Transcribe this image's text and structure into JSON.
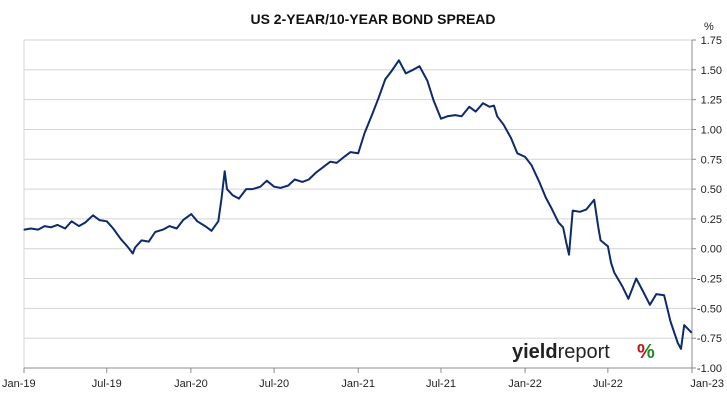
{
  "watermark": {
    "brand_bold": "yield",
    "brand_regular": "report",
    "brand_symbol": "%"
  },
  "colors": {
    "line": "#0d2a6b",
    "axis": "#8c8c8c",
    "grid": "#d4d4d4",
    "logo_red": "#c0161b",
    "logo_green": "#1f8a2b"
  },
  "chart_data": {
    "type": "line",
    "title": "US 2-YEAR/10-YEAR BOND SPREAD",
    "xlabel": "",
    "ylabel": "%",
    "y_axis_side": "right",
    "ylim": [
      -1.0,
      1.75
    ],
    "y_ticks": [
      -1.0,
      -0.75,
      -0.5,
      -0.25,
      0.0,
      0.25,
      0.5,
      0.75,
      1.0,
      1.25,
      1.5,
      1.75
    ],
    "y_tick_labels": [
      "-1.00",
      "-0.75",
      "-0.50",
      "-0.25",
      "0.00",
      "0.25",
      "0.50",
      "0.75",
      "1.00",
      "1.25",
      "1.50",
      "1.75"
    ],
    "xlim": [
      "2019-01-01",
      "2023-01-01"
    ],
    "x_ticks": [
      "2019-01-01",
      "2019-07-01",
      "2020-01-01",
      "2020-07-01",
      "2021-01-01",
      "2021-07-01",
      "2022-01-01",
      "2022-07-01",
      "2023-01-01"
    ],
    "x_tick_labels": [
      "Jan-19",
      "Jul-19",
      "Jan-20",
      "Jul-20",
      "Jan-21",
      "Jul-21",
      "Jan-22",
      "Jul-22",
      "Jan-23"
    ],
    "grid": "horizontal",
    "legend": "none",
    "series": [
      {
        "x": [
          "2019-01-02",
          "2019-01-16",
          "2019-02-01",
          "2019-02-15",
          "2019-03-01",
          "2019-03-15",
          "2019-04-01",
          "2019-04-15",
          "2019-05-01",
          "2019-05-15",
          "2019-06-01",
          "2019-06-15",
          "2019-07-01",
          "2019-07-15",
          "2019-08-01",
          "2019-08-15",
          "2019-08-27",
          "2019-09-01",
          "2019-09-15",
          "2019-10-01",
          "2019-10-15",
          "2019-11-01",
          "2019-11-15",
          "2019-12-01",
          "2019-12-15",
          "2020-01-02",
          "2020-01-15",
          "2020-02-01",
          "2020-02-15",
          "2020-03-01",
          "2020-03-08",
          "2020-03-15",
          "2020-03-20",
          "2020-04-01",
          "2020-04-15",
          "2020-05-01",
          "2020-05-15",
          "2020-06-01",
          "2020-06-15",
          "2020-07-01",
          "2020-07-15",
          "2020-08-01",
          "2020-08-15",
          "2020-09-01",
          "2020-09-15",
          "2020-10-01",
          "2020-10-15",
          "2020-11-01",
          "2020-11-15",
          "2020-12-01",
          "2020-12-15",
          "2021-01-01",
          "2021-01-15",
          "2021-02-01",
          "2021-02-15",
          "2021-03-01",
          "2021-03-15",
          "2021-03-31",
          "2021-04-15",
          "2021-05-01",
          "2021-05-15",
          "2021-06-01",
          "2021-06-15",
          "2021-07-01",
          "2021-07-15",
          "2021-08-01",
          "2021-08-15",
          "2021-09-01",
          "2021-09-15",
          "2021-10-01",
          "2021-10-15",
          "2021-10-25",
          "2021-11-01",
          "2021-11-15",
          "2021-12-01",
          "2021-12-15",
          "2022-01-01",
          "2022-01-15",
          "2022-02-01",
          "2022-02-15",
          "2022-03-01",
          "2022-03-15",
          "2022-03-25",
          "2022-04-01",
          "2022-04-07",
          "2022-04-15",
          "2022-05-01",
          "2022-05-15",
          "2022-06-01",
          "2022-06-10",
          "2022-06-15",
          "2022-07-01",
          "2022-07-08",
          "2022-07-15",
          "2022-08-01",
          "2022-08-15",
          "2022-09-01",
          "2022-09-15",
          "2022-10-01",
          "2022-10-15",
          "2022-11-01",
          "2022-11-15",
          "2022-12-01",
          "2022-12-08",
          "2022-12-15",
          "2022-12-30"
        ],
        "values": [
          0.16,
          0.17,
          0.16,
          0.19,
          0.18,
          0.2,
          0.17,
          0.23,
          0.19,
          0.22,
          0.28,
          0.24,
          0.23,
          0.17,
          0.08,
          0.02,
          -0.04,
          0.01,
          0.07,
          0.06,
          0.14,
          0.16,
          0.19,
          0.17,
          0.24,
          0.29,
          0.23,
          0.19,
          0.15,
          0.23,
          0.42,
          0.65,
          0.5,
          0.45,
          0.42,
          0.5,
          0.5,
          0.52,
          0.57,
          0.52,
          0.51,
          0.53,
          0.58,
          0.56,
          0.58,
          0.64,
          0.68,
          0.73,
          0.72,
          0.77,
          0.81,
          0.8,
          0.97,
          1.13,
          1.27,
          1.42,
          1.49,
          1.58,
          1.47,
          1.5,
          1.53,
          1.41,
          1.24,
          1.09,
          1.11,
          1.12,
          1.11,
          1.19,
          1.15,
          1.22,
          1.19,
          1.2,
          1.11,
          1.04,
          0.93,
          0.8,
          0.77,
          0.7,
          0.56,
          0.43,
          0.33,
          0.22,
          0.18,
          0.05,
          -0.05,
          0.32,
          0.31,
          0.33,
          0.41,
          0.18,
          0.07,
          0.02,
          -0.12,
          -0.2,
          -0.31,
          -0.42,
          -0.25,
          -0.35,
          -0.47,
          -0.38,
          -0.39,
          -0.61,
          -0.79,
          -0.84,
          -0.64,
          -0.7
        ]
      }
    ]
  }
}
